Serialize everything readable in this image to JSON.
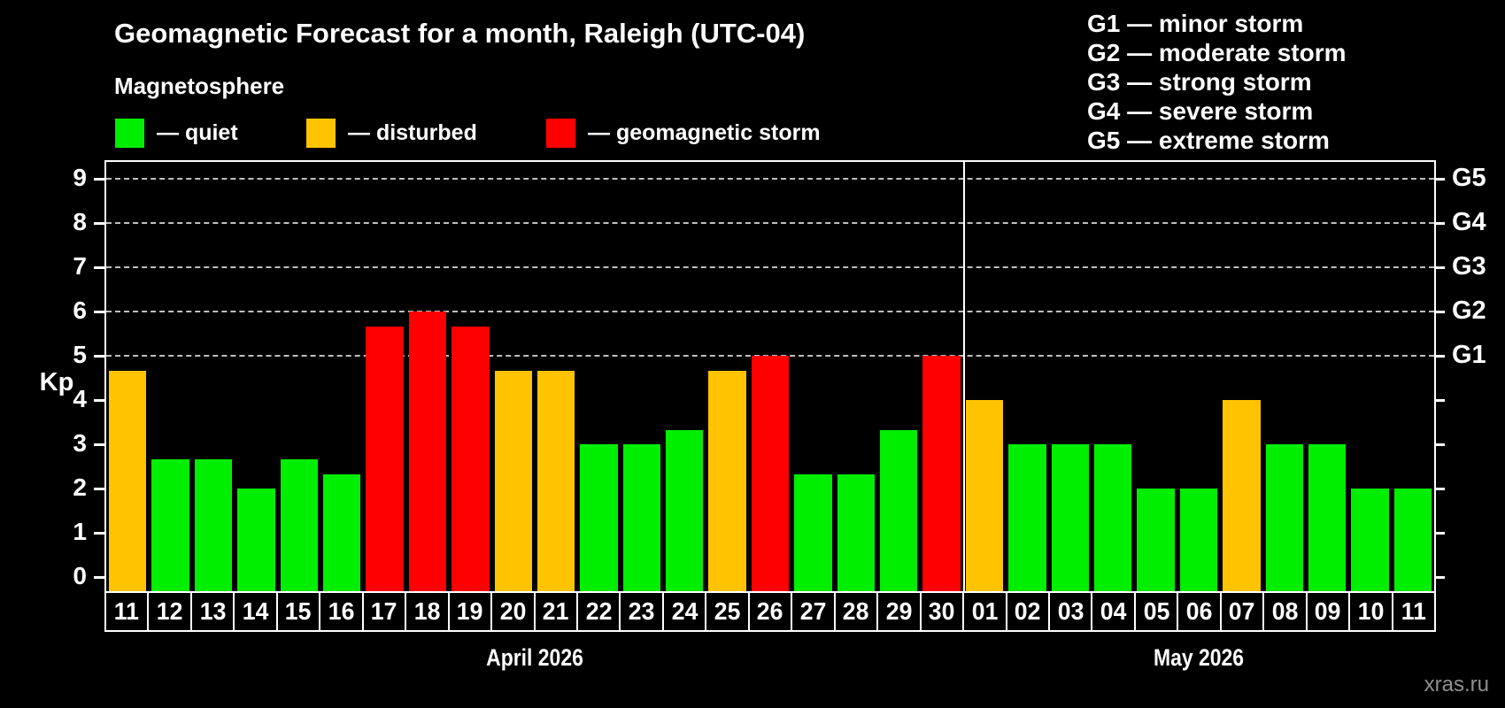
{
  "header": {
    "title": "Geomagnetic Forecast for a month, Raleigh (UTC-04)",
    "subtitle": "Magnetosphere"
  },
  "legend": {
    "items": [
      {
        "key": "quiet",
        "label": "— quiet",
        "color": "#00ee00"
      },
      {
        "key": "disturbed",
        "label": "— disturbed",
        "color": "#ffc300"
      },
      {
        "key": "storm",
        "label": "— geomagnetic storm",
        "color": "#ff0000"
      }
    ]
  },
  "g_legend": {
    "items": [
      "G1 — minor storm",
      "G2 — moderate storm",
      "G3 — strong storm",
      "G4 — severe storm",
      "G5 — extreme storm"
    ]
  },
  "watermark": "xras.ru",
  "chart_data": {
    "type": "bar",
    "title": "Geomagnetic Forecast for a month, Raleigh (UTC-04)",
    "ylabel": "Kp",
    "ylim": [
      0,
      9
    ],
    "yticks": [
      0,
      1,
      2,
      3,
      4,
      5,
      6,
      7,
      8,
      9
    ],
    "grid_kp_levels": [
      5,
      6,
      7,
      8,
      9
    ],
    "grid_style": "dashed",
    "right_axis": {
      "labels": [
        "G1",
        "G2",
        "G3",
        "G4",
        "G5"
      ],
      "kp": [
        5,
        6,
        7,
        8,
        9
      ]
    },
    "status_colors": {
      "quiet": "#00ee00",
      "disturbed": "#ffc300",
      "storm": "#ff0000"
    },
    "sections": [
      {
        "month_label": "April 2026",
        "days": [
          "11",
          "12",
          "13",
          "14",
          "15",
          "16",
          "17",
          "18",
          "19",
          "20",
          "21",
          "22",
          "23",
          "24",
          "25",
          "26",
          "27",
          "28",
          "29",
          "30"
        ],
        "kp_values": [
          4.67,
          2.67,
          2.67,
          2,
          2.67,
          2.33,
          5.67,
          6,
          5.67,
          4.67,
          4.67,
          3,
          3,
          3.33,
          4.67,
          5,
          2.33,
          2.33,
          3.33,
          5
        ],
        "status": [
          "disturbed",
          "quiet",
          "quiet",
          "quiet",
          "quiet",
          "quiet",
          "storm",
          "storm",
          "storm",
          "disturbed",
          "disturbed",
          "quiet",
          "quiet",
          "quiet",
          "disturbed",
          "storm",
          "quiet",
          "quiet",
          "quiet",
          "storm"
        ]
      },
      {
        "month_label": "May 2026",
        "days": [
          "01",
          "02",
          "03",
          "04",
          "05",
          "06",
          "07",
          "08",
          "09",
          "10",
          "11"
        ],
        "kp_values": [
          4,
          3,
          3,
          3,
          2,
          2,
          4,
          3,
          3,
          2,
          2
        ],
        "status": [
          "disturbed",
          "quiet",
          "quiet",
          "quiet",
          "quiet",
          "quiet",
          "disturbed",
          "quiet",
          "quiet",
          "quiet",
          "quiet"
        ]
      }
    ]
  }
}
